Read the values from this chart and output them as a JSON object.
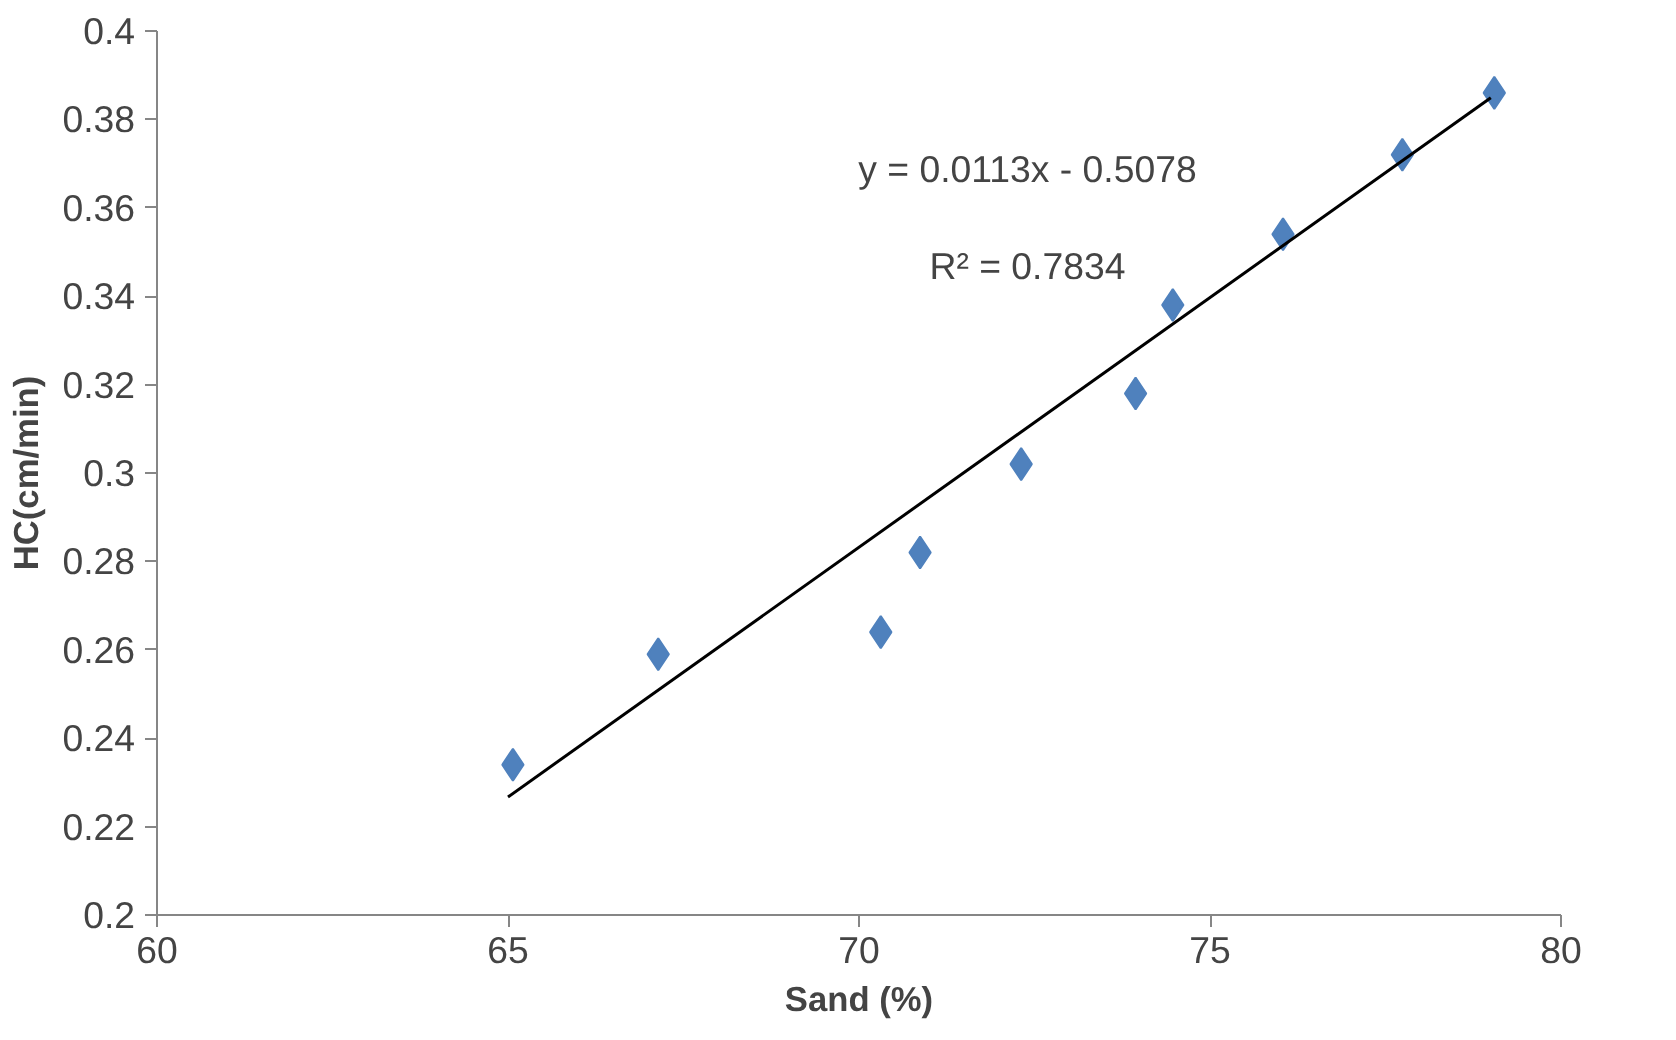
{
  "chart_data": {
    "type": "scatter",
    "xlabel": "Sand (%)",
    "ylabel": "HC(cm/min)",
    "xlim": [
      60,
      80
    ],
    "xticks": [
      60,
      65,
      70,
      75,
      80
    ],
    "ylim": [
      0.2,
      0.4
    ],
    "yticks": [
      0.2,
      0.22,
      0.24,
      0.26,
      0.28,
      0.3,
      0.32,
      0.34,
      0.36,
      0.38,
      0.4
    ],
    "grid": false,
    "marker": "diamond",
    "annotations": [
      "y = 0.0113x - 0.5078",
      "R² = 0.7834"
    ],
    "series": [
      {
        "color": "#4f81bd",
        "x": [
          65.07,
          67.14,
          70.31,
          70.87,
          72.31,
          73.94,
          74.47,
          76.04,
          77.74,
          79.05
        ],
        "values": [
          0.234,
          0.259,
          0.264,
          0.282,
          0.302,
          0.318,
          0.338,
          0.354,
          0.372,
          0.386
        ]
      },
      {
        "type": "line",
        "color": "#000000",
        "marker": "none",
        "line_style": "solid",
        "x": [
          65,
          79
        ],
        "values": [
          0.2267,
          0.3849
        ]
      }
    ]
  }
}
